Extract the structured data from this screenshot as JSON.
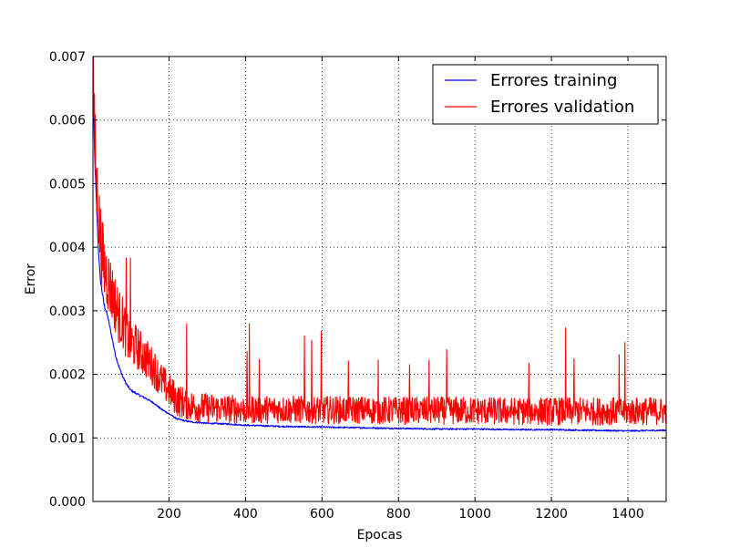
{
  "chart_data": {
    "type": "line",
    "title": "",
    "xlabel": "Epocas",
    "ylabel": "Error",
    "xlim": [
      1,
      1500
    ],
    "ylim": [
      0.0,
      0.007
    ],
    "grid": true,
    "legend_position": "top-right",
    "x_ticks": [
      200,
      400,
      600,
      800,
      1000,
      1200,
      1400
    ],
    "x_tick_labels": [
      "200",
      "400",
      "600",
      "800",
      "1000",
      "1200",
      "1400"
    ],
    "y_ticks": [
      0.0,
      0.001,
      0.002,
      0.003,
      0.004,
      0.005,
      0.006,
      0.007
    ],
    "y_tick_labels": [
      "0.000",
      "0.001",
      "0.002",
      "0.003",
      "0.004",
      "0.005",
      "0.006",
      "0.007"
    ],
    "series": [
      {
        "name": "Errores training",
        "color": "#0000ff",
        "x": [
          1,
          5,
          10,
          15,
          20,
          25,
          30,
          40,
          50,
          60,
          70,
          80,
          90,
          100,
          120,
          140,
          160,
          180,
          200,
          220,
          240,
          260,
          280,
          300,
          350,
          400,
          450,
          500,
          600,
          700,
          800,
          900,
          1000,
          1100,
          1200,
          1300,
          1400,
          1500
        ],
        "values": [
          0.0066,
          0.0055,
          0.0047,
          0.004,
          0.0035,
          0.0033,
          0.0031,
          0.0029,
          0.0026,
          0.0023,
          0.0021,
          0.00195,
          0.00183,
          0.00175,
          0.00168,
          0.00162,
          0.00155,
          0.00145,
          0.00138,
          0.0013,
          0.00127,
          0.00125,
          0.00124,
          0.00123,
          0.00122,
          0.0012,
          0.00119,
          0.00118,
          0.00117,
          0.00116,
          0.00115,
          0.00114,
          0.00114,
          0.00113,
          0.00113,
          0.00112,
          0.00111,
          0.00112
        ]
      },
      {
        "name": "Errores validation",
        "color": "#ff0000",
        "x": [
          1,
          5,
          10,
          15,
          20,
          25,
          30,
          40,
          50,
          60,
          70,
          80,
          90,
          100,
          120,
          140,
          160,
          180,
          200,
          220,
          240,
          260,
          280,
          300,
          350,
          400,
          450,
          500,
          600,
          700,
          800,
          900,
          1000,
          1100,
          1200,
          1300,
          1400,
          1500
        ],
        "values": [
          0.0069,
          0.0058,
          0.005,
          0.0046,
          0.0042,
          0.0039,
          0.0037,
          0.0035,
          0.0033,
          0.0031,
          0.0029,
          0.0028,
          0.0026,
          0.0025,
          0.0024,
          0.00225,
          0.0021,
          0.0019,
          0.00175,
          0.0016,
          0.00155,
          0.0015,
          0.00148,
          0.00147,
          0.00146,
          0.00145,
          0.00145,
          0.00145,
          0.00144,
          0.00144,
          0.00143,
          0.00143,
          0.00143,
          0.00142,
          0.00142,
          0.00142,
          0.00142,
          0.00142
        ]
      }
    ]
  }
}
